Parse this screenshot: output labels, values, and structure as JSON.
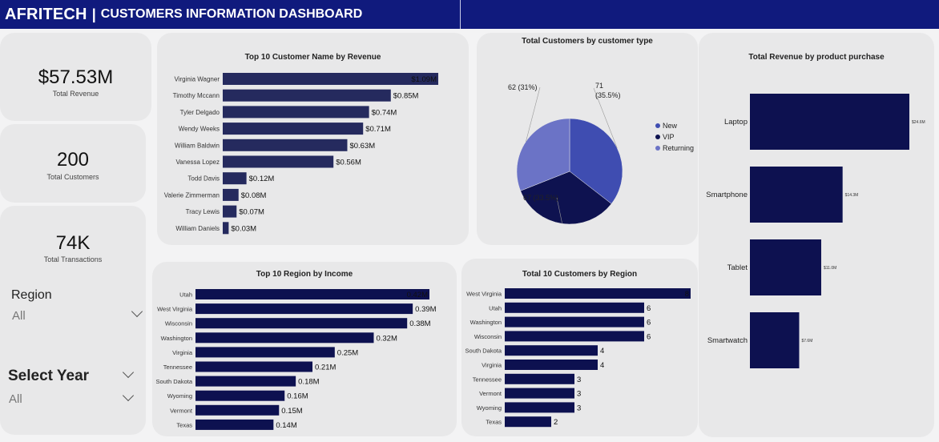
{
  "header": {
    "brand": "AFRITECH",
    "separator": "|",
    "title": "CUSTOMERS INFORMATION DASHBOARD"
  },
  "kpis": {
    "revenue": {
      "value": "$57.53M",
      "label": "Total Revenue"
    },
    "customers": {
      "value": "200",
      "label": "Total Customers"
    },
    "transactions": {
      "value": "74K",
      "label": "Total Transactions"
    }
  },
  "slicers": {
    "region": {
      "title": "Region",
      "value": "All"
    },
    "year": {
      "title": "Select Year",
      "value": "All"
    }
  },
  "colors": {
    "header": "#101a7d",
    "bar_dark": "#0d1150",
    "bar_medium": "#252a5e",
    "pie_new": "#3f4db1",
    "pie_vip": "#0e1250",
    "pie_returning": "#6b73c6"
  },
  "chart_data": [
    {
      "id": "top_customers",
      "type": "bar",
      "orientation": "horizontal",
      "title": "Top 10 Customer Name by Revenue",
      "categories": [
        "Virginia Wagner",
        "Timothy Mccann",
        "Tyler Delgado",
        "Wendy Weeks",
        "William Baldwin",
        "Vanessa Lopez",
        "Todd Davis",
        "Valerie Zimmerman",
        "Tracy Lewis",
        "William Daniels"
      ],
      "values": [
        1.09,
        0.85,
        0.74,
        0.71,
        0.63,
        0.56,
        0.12,
        0.08,
        0.07,
        0.03
      ],
      "labels": [
        "$1.09M",
        "$0.85M",
        "$0.74M",
        "$0.71M",
        "$0.63M",
        "$0.56M",
        "$0.12M",
        "$0.08M",
        "$0.07M",
        "$0.03M"
      ]
    },
    {
      "id": "customer_type",
      "type": "pie",
      "title": "Total Customers by customer type",
      "series": [
        {
          "name": "New",
          "value": 71,
          "pct": "(35.5%)"
        },
        {
          "name": "VIP",
          "value": 67,
          "pct": "(33.5%)"
        },
        {
          "name": "Returning",
          "value": 62,
          "pct": "(31%)"
        }
      ],
      "legend": "right"
    },
    {
      "id": "product_revenue",
      "type": "bar",
      "orientation": "vertical",
      "title": "Total Revenue by product purchase",
      "categories": [
        "Laptop",
        "Smartphone",
        "Tablet",
        "Smartwatch"
      ],
      "values": [
        24.6,
        14.3,
        11.0,
        7.6
      ],
      "labels": [
        "$24.6M",
        "$14.3M",
        "$11.0M",
        "$7.6M"
      ]
    },
    {
      "id": "region_income",
      "type": "bar",
      "orientation": "horizontal",
      "title": "Top 10 Region by Income",
      "categories": [
        "Utah",
        "West Virginia",
        "Wisconsin",
        "Washington",
        "Virginia",
        "Tennessee",
        "South Dakota",
        "Wyoming",
        "Vermont",
        "Texas"
      ],
      "values": [
        0.42,
        0.39,
        0.38,
        0.32,
        0.25,
        0.21,
        0.18,
        0.16,
        0.15,
        0.14
      ],
      "labels": [
        "0.42M",
        "0.39M",
        "0.38M",
        "0.32M",
        "0.25M",
        "0.21M",
        "0.18M",
        "0.16M",
        "0.15M",
        "0.14M"
      ]
    },
    {
      "id": "customers_region",
      "type": "bar",
      "orientation": "horizontal",
      "title": "Total 10 Customers by Region",
      "categories": [
        "West Virginia",
        "Utah",
        "Washington",
        "Wisconsin",
        "South Dakota",
        "Virginia",
        "Tennessee",
        "Vermont",
        "Wyoming",
        "Texas"
      ],
      "values": [
        8,
        6,
        6,
        6,
        4,
        4,
        3,
        3,
        3,
        2
      ],
      "labels": [
        "8",
        "6",
        "6",
        "6",
        "4",
        "4",
        "3",
        "3",
        "3",
        "2"
      ]
    }
  ]
}
